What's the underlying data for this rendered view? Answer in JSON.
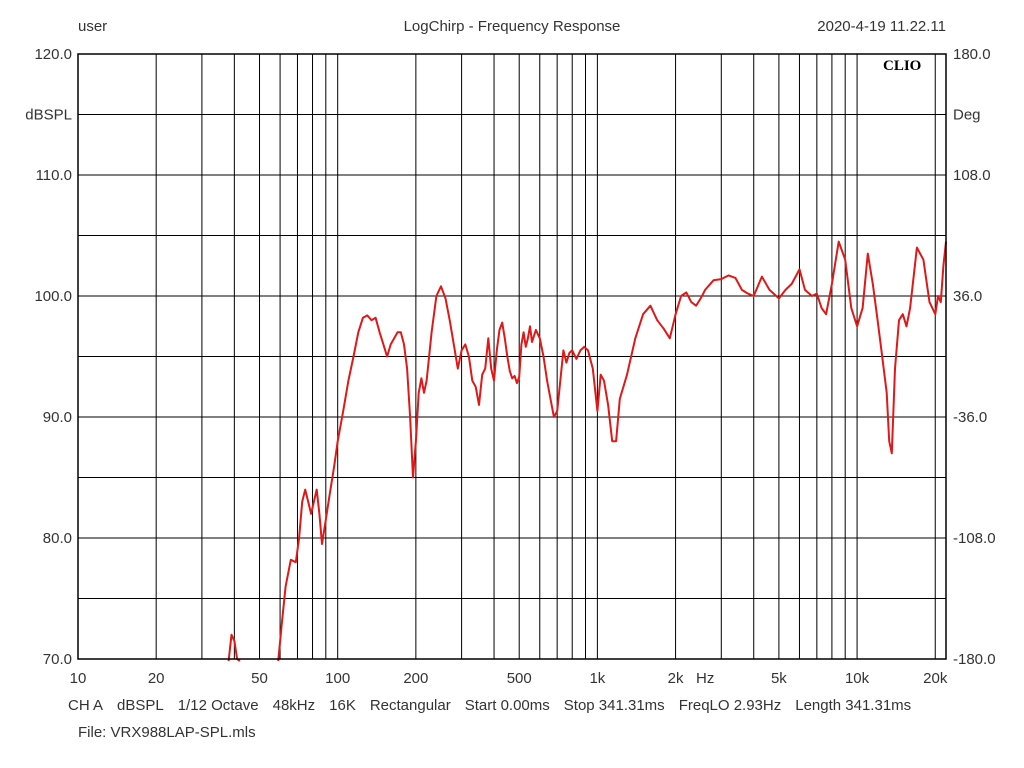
{
  "header": {
    "user": "user",
    "title": "LogChirp - Frequency Response",
    "timestamp": "2020-4-19 11.22.11"
  },
  "watermark": "CLIO",
  "footer": {
    "items": [
      "CH A",
      "dBSPL",
      "1/12 Octave",
      "48kHz",
      "16K",
      "Rectangular",
      "Start 0.00ms",
      "Stop 341.31ms",
      "FreqLO 2.93Hz",
      "Length 341.31ms"
    ],
    "file": "File: VRX988LAP-SPL.mls"
  },
  "chart_data": {
    "type": "line",
    "title": "LogChirp - Frequency Response",
    "x_scale": "log",
    "xlim": [
      10,
      22000
    ],
    "ylim": [
      70,
      120
    ],
    "y_right_lim": [
      -180,
      180
    ],
    "ylabel": "dBSPL",
    "y_right_label": "Deg",
    "xunit_label": "Hz",
    "grid": true,
    "x_tick_labels": [
      {
        "v": 10,
        "t": "10"
      },
      {
        "v": 20,
        "t": "20"
      },
      {
        "v": 50,
        "t": "50"
      },
      {
        "v": 100,
        "t": "100"
      },
      {
        "v": 200,
        "t": "200"
      },
      {
        "v": 500,
        "t": "500"
      },
      {
        "v": 1000,
        "t": "1k"
      },
      {
        "v": 2000,
        "t": "2k"
      },
      {
        "v": 5000,
        "t": "5k"
      },
      {
        "v": 10000,
        "t": "10k"
      },
      {
        "v": 20000,
        "t": "20k"
      }
    ],
    "y_tick_labels": [
      "70.0",
      "80.0",
      "90.0",
      "100.0",
      "110.0",
      "120.0"
    ],
    "y_right_tick_labels": [
      "-180.0",
      "-108.0",
      "-36.0",
      "36.0",
      "108.0",
      "180.0"
    ],
    "series": [
      {
        "color": "#e01818",
        "points": [
          [
            38,
            69.5
          ],
          [
            39,
            72
          ],
          [
            40,
            71.5
          ],
          [
            41,
            70
          ],
          [
            42,
            69.5
          ],
          [
            59,
            69.5
          ],
          [
            61,
            73
          ],
          [
            63,
            76
          ],
          [
            66,
            78.2
          ],
          [
            69,
            78
          ],
          [
            71,
            80
          ],
          [
            73,
            83
          ],
          [
            75,
            84
          ],
          [
            77,
            83
          ],
          [
            79,
            82
          ],
          [
            81,
            83
          ],
          [
            83,
            84
          ],
          [
            85,
            82
          ],
          [
            87,
            79.5
          ],
          [
            90,
            81.5
          ],
          [
            93,
            83.5
          ],
          [
            97,
            86
          ],
          [
            100,
            88
          ],
          [
            105,
            90.5
          ],
          [
            110,
            93
          ],
          [
            115,
            95
          ],
          [
            120,
            97
          ],
          [
            125,
            98.2
          ],
          [
            130,
            98.4
          ],
          [
            135,
            98
          ],
          [
            140,
            98.2
          ],
          [
            145,
            97
          ],
          [
            150,
            96
          ],
          [
            155,
            95
          ],
          [
            160,
            96
          ],
          [
            165,
            96.5
          ],
          [
            170,
            97
          ],
          [
            175,
            97
          ],
          [
            180,
            96
          ],
          [
            185,
            94
          ],
          [
            190,
            90
          ],
          [
            195,
            85
          ],
          [
            200,
            88
          ],
          [
            205,
            92
          ],
          [
            210,
            93.2
          ],
          [
            215,
            92
          ],
          [
            220,
            93
          ],
          [
            230,
            97
          ],
          [
            240,
            100
          ],
          [
            250,
            100.8
          ],
          [
            260,
            99.8
          ],
          [
            270,
            98
          ],
          [
            280,
            96
          ],
          [
            290,
            94
          ],
          [
            300,
            95.5
          ],
          [
            310,
            96
          ],
          [
            320,
            95
          ],
          [
            330,
            93
          ],
          [
            340,
            92.5
          ],
          [
            350,
            91
          ],
          [
            360,
            93.5
          ],
          [
            370,
            94
          ],
          [
            380,
            96.5
          ],
          [
            390,
            94
          ],
          [
            400,
            93
          ],
          [
            410,
            95.5
          ],
          [
            420,
            97.2
          ],
          [
            430,
            97.8
          ],
          [
            440,
            96.5
          ],
          [
            450,
            95
          ],
          [
            460,
            93.8
          ],
          [
            470,
            93.2
          ],
          [
            480,
            93.4
          ],
          [
            490,
            92.8
          ],
          [
            500,
            93.3
          ],
          [
            510,
            96
          ],
          [
            520,
            97
          ],
          [
            530,
            95.8
          ],
          [
            540,
            96.5
          ],
          [
            550,
            97.5
          ],
          [
            560,
            96.2
          ],
          [
            580,
            97.2
          ],
          [
            600,
            96.5
          ],
          [
            620,
            95
          ],
          [
            640,
            93
          ],
          [
            660,
            91.5
          ],
          [
            680,
            90
          ],
          [
            700,
            90.5
          ],
          [
            720,
            93
          ],
          [
            740,
            95.5
          ],
          [
            760,
            94.5
          ],
          [
            780,
            95.3
          ],
          [
            800,
            95.5
          ],
          [
            830,
            94.8
          ],
          [
            860,
            95.5
          ],
          [
            890,
            95.8
          ],
          [
            920,
            95.5
          ],
          [
            960,
            94
          ],
          [
            1000,
            90.5
          ],
          [
            1030,
            93.5
          ],
          [
            1060,
            93
          ],
          [
            1100,
            91
          ],
          [
            1140,
            88
          ],
          [
            1180,
            88
          ],
          [
            1220,
            91.5
          ],
          [
            1300,
            93.5
          ],
          [
            1400,
            96.5
          ],
          [
            1500,
            98.5
          ],
          [
            1600,
            99.2
          ],
          [
            1700,
            98
          ],
          [
            1800,
            97.3
          ],
          [
            1900,
            96.5
          ],
          [
            2000,
            98.5
          ],
          [
            2100,
            100
          ],
          [
            2200,
            100.3
          ],
          [
            2300,
            99.5
          ],
          [
            2400,
            99.2
          ],
          [
            2500,
            99.8
          ],
          [
            2600,
            100.5
          ],
          [
            2800,
            101.3
          ],
          [
            3000,
            101.4
          ],
          [
            3200,
            101.7
          ],
          [
            3400,
            101.5
          ],
          [
            3600,
            100.5
          ],
          [
            3800,
            100.2
          ],
          [
            4000,
            100
          ],
          [
            4300,
            101.6
          ],
          [
            4600,
            100.5
          ],
          [
            5000,
            99.8
          ],
          [
            5300,
            100.5
          ],
          [
            5600,
            101
          ],
          [
            6000,
            102.2
          ],
          [
            6300,
            100.5
          ],
          [
            6700,
            100
          ],
          [
            7000,
            100.2
          ],
          [
            7300,
            99
          ],
          [
            7600,
            98.5
          ],
          [
            8000,
            101
          ],
          [
            8500,
            104.5
          ],
          [
            9000,
            103
          ],
          [
            9500,
            99
          ],
          [
            10000,
            97.5
          ],
          [
            10500,
            99
          ],
          [
            11000,
            103.5
          ],
          [
            11500,
            101
          ],
          [
            12000,
            98
          ],
          [
            12500,
            95
          ],
          [
            13000,
            92
          ],
          [
            13300,
            88
          ],
          [
            13600,
            87
          ],
          [
            14000,
            94
          ],
          [
            14500,
            98
          ],
          [
            15000,
            98.5
          ],
          [
            15500,
            97.5
          ],
          [
            16000,
            99
          ],
          [
            17000,
            104
          ],
          [
            18000,
            103
          ],
          [
            19000,
            99.5
          ],
          [
            20000,
            98.5
          ],
          [
            20500,
            100
          ],
          [
            21000,
            99.5
          ],
          [
            21500,
            102.5
          ],
          [
            22000,
            104.5
          ]
        ]
      }
    ]
  }
}
